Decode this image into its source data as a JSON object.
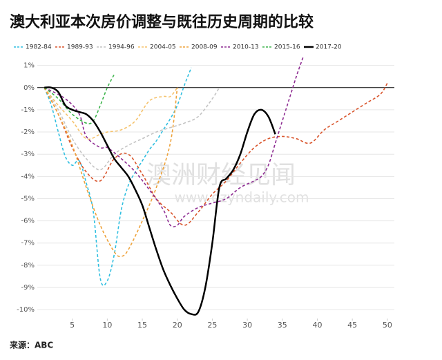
{
  "chart_data": {
    "type": "line",
    "title": "澳大利亚本次房价调整与既往历史周期的比较",
    "source": "来源：ABC",
    "watermark": "澳洲财经见闻",
    "watermark_url": "www.ozyndaily.com",
    "xlim": [
      0,
      51
    ],
    "ylim": [
      -10.4,
      1.3
    ],
    "xticks": [
      5,
      10,
      15,
      20,
      25,
      30,
      35,
      40,
      45,
      50
    ],
    "yticks": [
      {
        "value": 1,
        "label": "1%"
      },
      {
        "value": 0,
        "label": "0%"
      },
      {
        "value": -1,
        "label": "-1%"
      },
      {
        "value": -2,
        "label": "-2%"
      },
      {
        "value": -3,
        "label": "-3%"
      },
      {
        "value": -4,
        "label": "-4%"
      },
      {
        "value": -5,
        "label": "-5%"
      },
      {
        "value": -6,
        "label": "-6%"
      },
      {
        "value": -7,
        "label": "-7%"
      },
      {
        "value": -8,
        "label": "-8%"
      },
      {
        "value": -9,
        "label": "-9%"
      },
      {
        "value": -10,
        "label": "-10%"
      }
    ],
    "grid": true,
    "legend": "top",
    "series": [
      {
        "name": "1982-84",
        "color": "#2fbfe0",
        "line_style": "dashed",
        "x": [
          1,
          2,
          3,
          4,
          5,
          6,
          7,
          8,
          9,
          10,
          11,
          12,
          13,
          14,
          15,
          16,
          17,
          18,
          19,
          20,
          21,
          22
        ],
        "values": [
          0,
          -0.8,
          -2,
          -3.1,
          -3.5,
          -3.3,
          -4.3,
          -5.6,
          -8.6,
          -8.7,
          -7.5,
          -5.5,
          -4.4,
          -3.8,
          -3.3,
          -2.8,
          -2.4,
          -1.9,
          -1.4,
          -0.8,
          0.1,
          0.9
        ]
      },
      {
        "name": "1989-93",
        "color": "#d9542b",
        "line_style": "dashed",
        "x": [
          1,
          3,
          5,
          7,
          9,
          11,
          13,
          15,
          17,
          19,
          21,
          23,
          25,
          27,
          29,
          31,
          33,
          35,
          37,
          39,
          41,
          43,
          45,
          47,
          49,
          50
        ],
        "values": [
          0,
          -1.2,
          -2.7,
          -3.8,
          -4.2,
          -3.2,
          -3,
          -3.9,
          -5,
          -5.6,
          -6.2,
          -5.6,
          -4.8,
          -4.2,
          -3.4,
          -2.7,
          -2.3,
          -2.2,
          -2.3,
          -2.5,
          -1.9,
          -1.5,
          -1.1,
          -0.7,
          -0.3,
          0.2
        ]
      },
      {
        "name": "1994-96",
        "color": "#c4c4c4",
        "line_style": "dashed",
        "x": [
          1,
          3,
          5,
          7,
          9,
          11,
          13,
          15,
          17,
          19,
          21,
          23,
          25,
          26
        ],
        "values": [
          0,
          -1,
          -2.3,
          -3.2,
          -3.7,
          -3,
          -2.6,
          -2.3,
          -2,
          -1.8,
          -1.6,
          -1.3,
          -0.5,
          0
        ]
      },
      {
        "name": "2004-05",
        "color": "#f5c26b",
        "line_style": "dashed",
        "x": [
          1,
          3,
          5,
          7,
          9,
          10,
          12,
          14,
          16,
          18,
          19,
          20
        ],
        "values": [
          0,
          -0.8,
          -1.5,
          -2.3,
          -2.1,
          -2,
          -1.9,
          -1.5,
          -0.6,
          -0.4,
          -0.4,
          0
        ]
      },
      {
        "name": "2008-09",
        "color": "#eea23a",
        "line_style": "dashed",
        "x": [
          1,
          3,
          5,
          7,
          9,
          11,
          12,
          13,
          15,
          17,
          19,
          20
        ],
        "values": [
          0,
          -1.2,
          -2.6,
          -4.5,
          -6.2,
          -7.4,
          -7.6,
          -7.3,
          -6,
          -4.5,
          -2.5,
          0
        ]
      },
      {
        "name": "2010-13",
        "color": "#8e2c92",
        "line_style": "dashed",
        "x": [
          1,
          4,
          6,
          7,
          9,
          10,
          12,
          14,
          16,
          18,
          19,
          20,
          21,
          23,
          25,
          27,
          29,
          31,
          32,
          33,
          34,
          35,
          36,
          37,
          38
        ],
        "values": [
          0,
          -0.5,
          -1.2,
          -2.2,
          -2.7,
          -2.7,
          -3.2,
          -3.8,
          -4.6,
          -5.5,
          -6.2,
          -6.2,
          -5.8,
          -5.4,
          -5.2,
          -5,
          -4.5,
          -4.2,
          -4,
          -3.5,
          -2.5,
          -1.5,
          -0.5,
          0.5,
          1.4
        ]
      },
      {
        "name": "2015-16",
        "color": "#3cb44b",
        "line_style": "dashed",
        "x": [
          1,
          3,
          5,
          7,
          8,
          9,
          10,
          11
        ],
        "values": [
          0,
          -0.5,
          -1.2,
          -1.6,
          -1.5,
          -0.8,
          0,
          0.6
        ]
      },
      {
        "name": "2017-20",
        "color": "#000000",
        "line_style": "solid",
        "x": [
          1,
          2,
          3,
          4,
          5,
          6,
          7,
          8,
          9,
          10,
          11,
          12,
          13,
          14,
          15,
          16,
          17,
          18,
          19,
          20,
          21,
          22,
          23,
          24,
          25,
          26,
          27,
          28,
          29,
          30,
          31,
          32,
          33,
          34
        ],
        "values": [
          0,
          0,
          -0.2,
          -0.8,
          -1,
          -1.1,
          -1.2,
          -1.5,
          -2,
          -2.6,
          -3.2,
          -3.6,
          -4,
          -4.6,
          -5.3,
          -6.3,
          -7.3,
          -8.2,
          -8.9,
          -9.5,
          -10,
          -10.2,
          -10.1,
          -9,
          -7,
          -4.5,
          -4.1,
          -3.7,
          -3,
          -2,
          -1.2,
          -1,
          -1.3,
          -2.1
        ]
      }
    ]
  }
}
